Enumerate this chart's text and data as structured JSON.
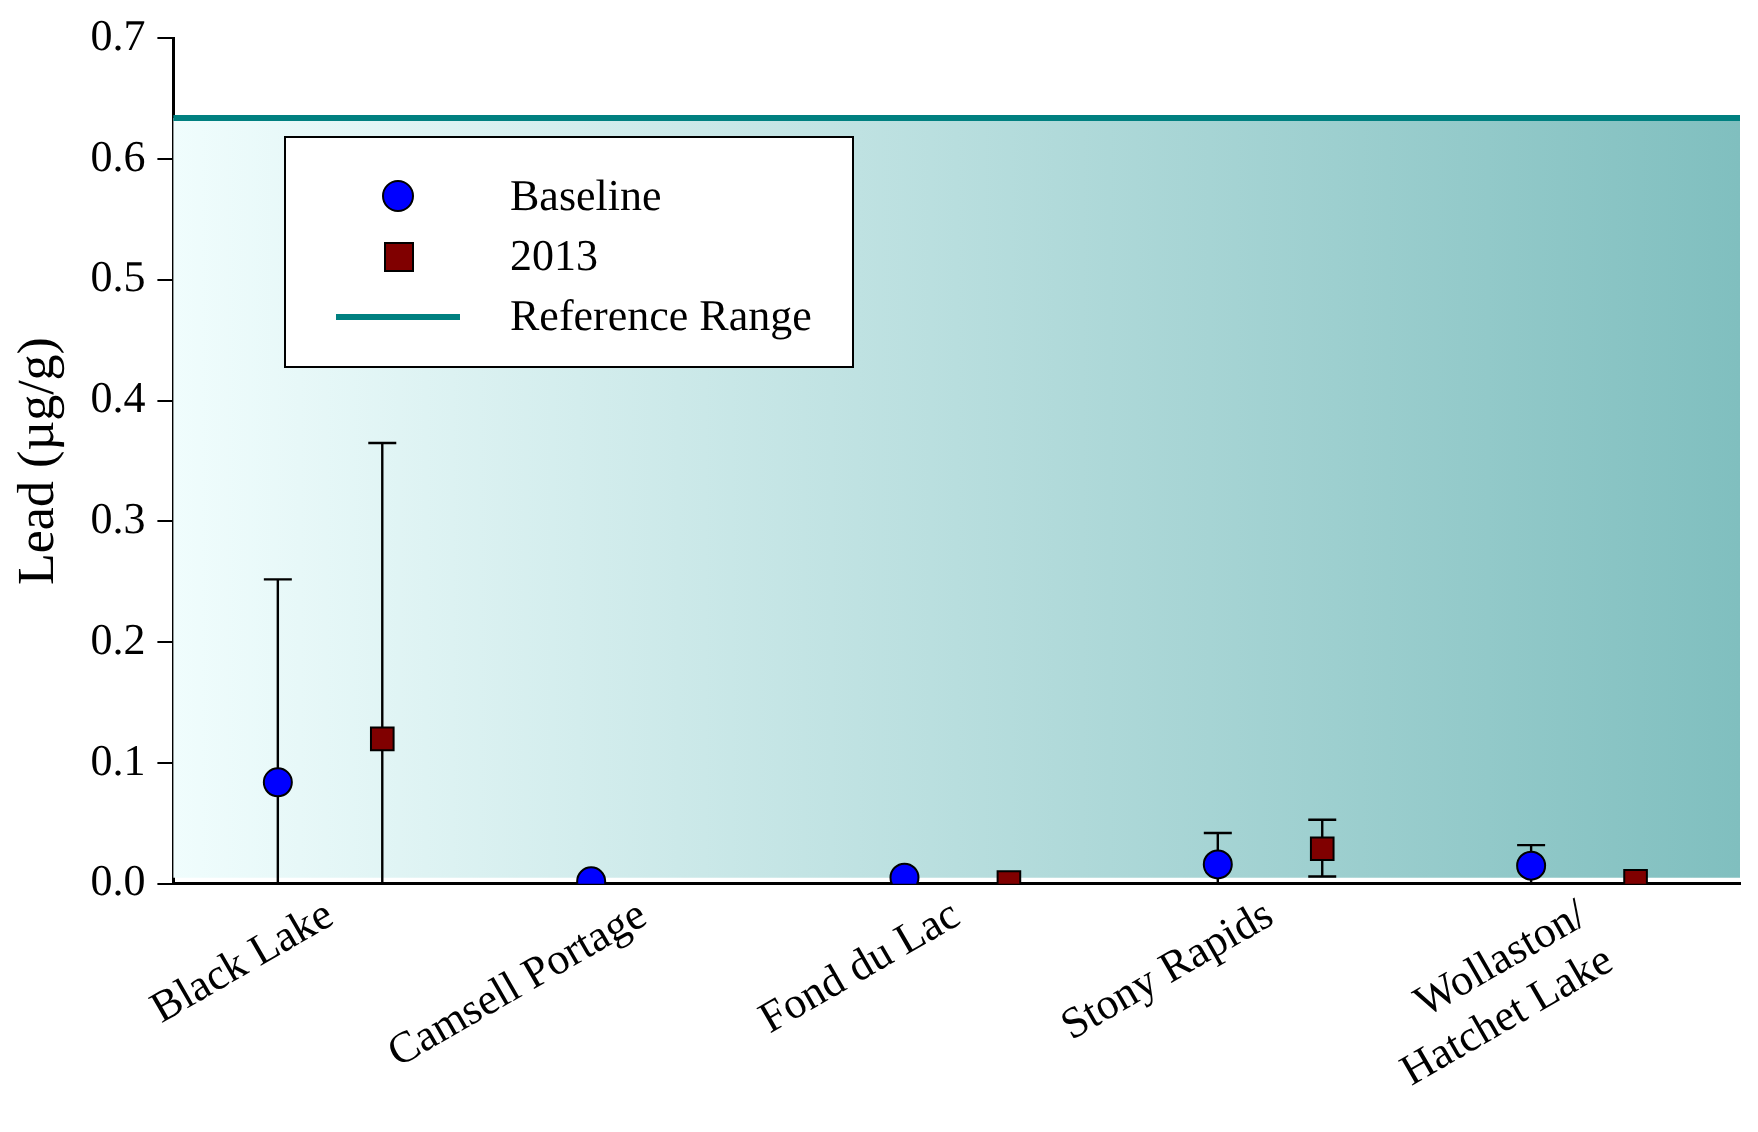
{
  "chart_data": {
    "type": "scatter",
    "ylabel": "Lead (µg/g)",
    "categories": [
      "Black Lake",
      "Camsell Portage",
      "Fond du Lac",
      "Stony Rapids",
      "Wollaston/\nHatchet Lake"
    ],
    "series": [
      {
        "name": "Baseline",
        "color": "#0000ff",
        "marker": "circle",
        "values": [
          0.084,
          0.002,
          0.005,
          0.016,
          0.015
        ],
        "errors": [
          [
            0,
            0.252
          ],
          null,
          null,
          [
            0,
            0.042
          ],
          [
            0,
            0.032
          ]
        ]
      },
      {
        "name": "2013",
        "color": "#800000",
        "marker": "square",
        "values": [
          0.12,
          null,
          0.001,
          0.029,
          0.002
        ],
        "errors": [
          [
            0,
            0.365
          ],
          null,
          null,
          [
            0.006,
            0.053
          ],
          null
        ]
      }
    ],
    "ylim": [
      0,
      0.7
    ],
    "yticks": [
      {
        "value": 0,
        "label": "0.0"
      },
      0.1,
      0.2,
      0.3,
      0.4,
      0.5,
      0.6,
      0.7
    ],
    "ref_lines": [
      {
        "axis": "y",
        "value": 0.634,
        "label": "Reference Range",
        "color": "#008080"
      }
    ],
    "bands": [
      {
        "axis": "y",
        "from": 0.005,
        "to": 0.634,
        "color": "#80bfbf"
      }
    ],
    "grid": false,
    "legend": "top left"
  }
}
